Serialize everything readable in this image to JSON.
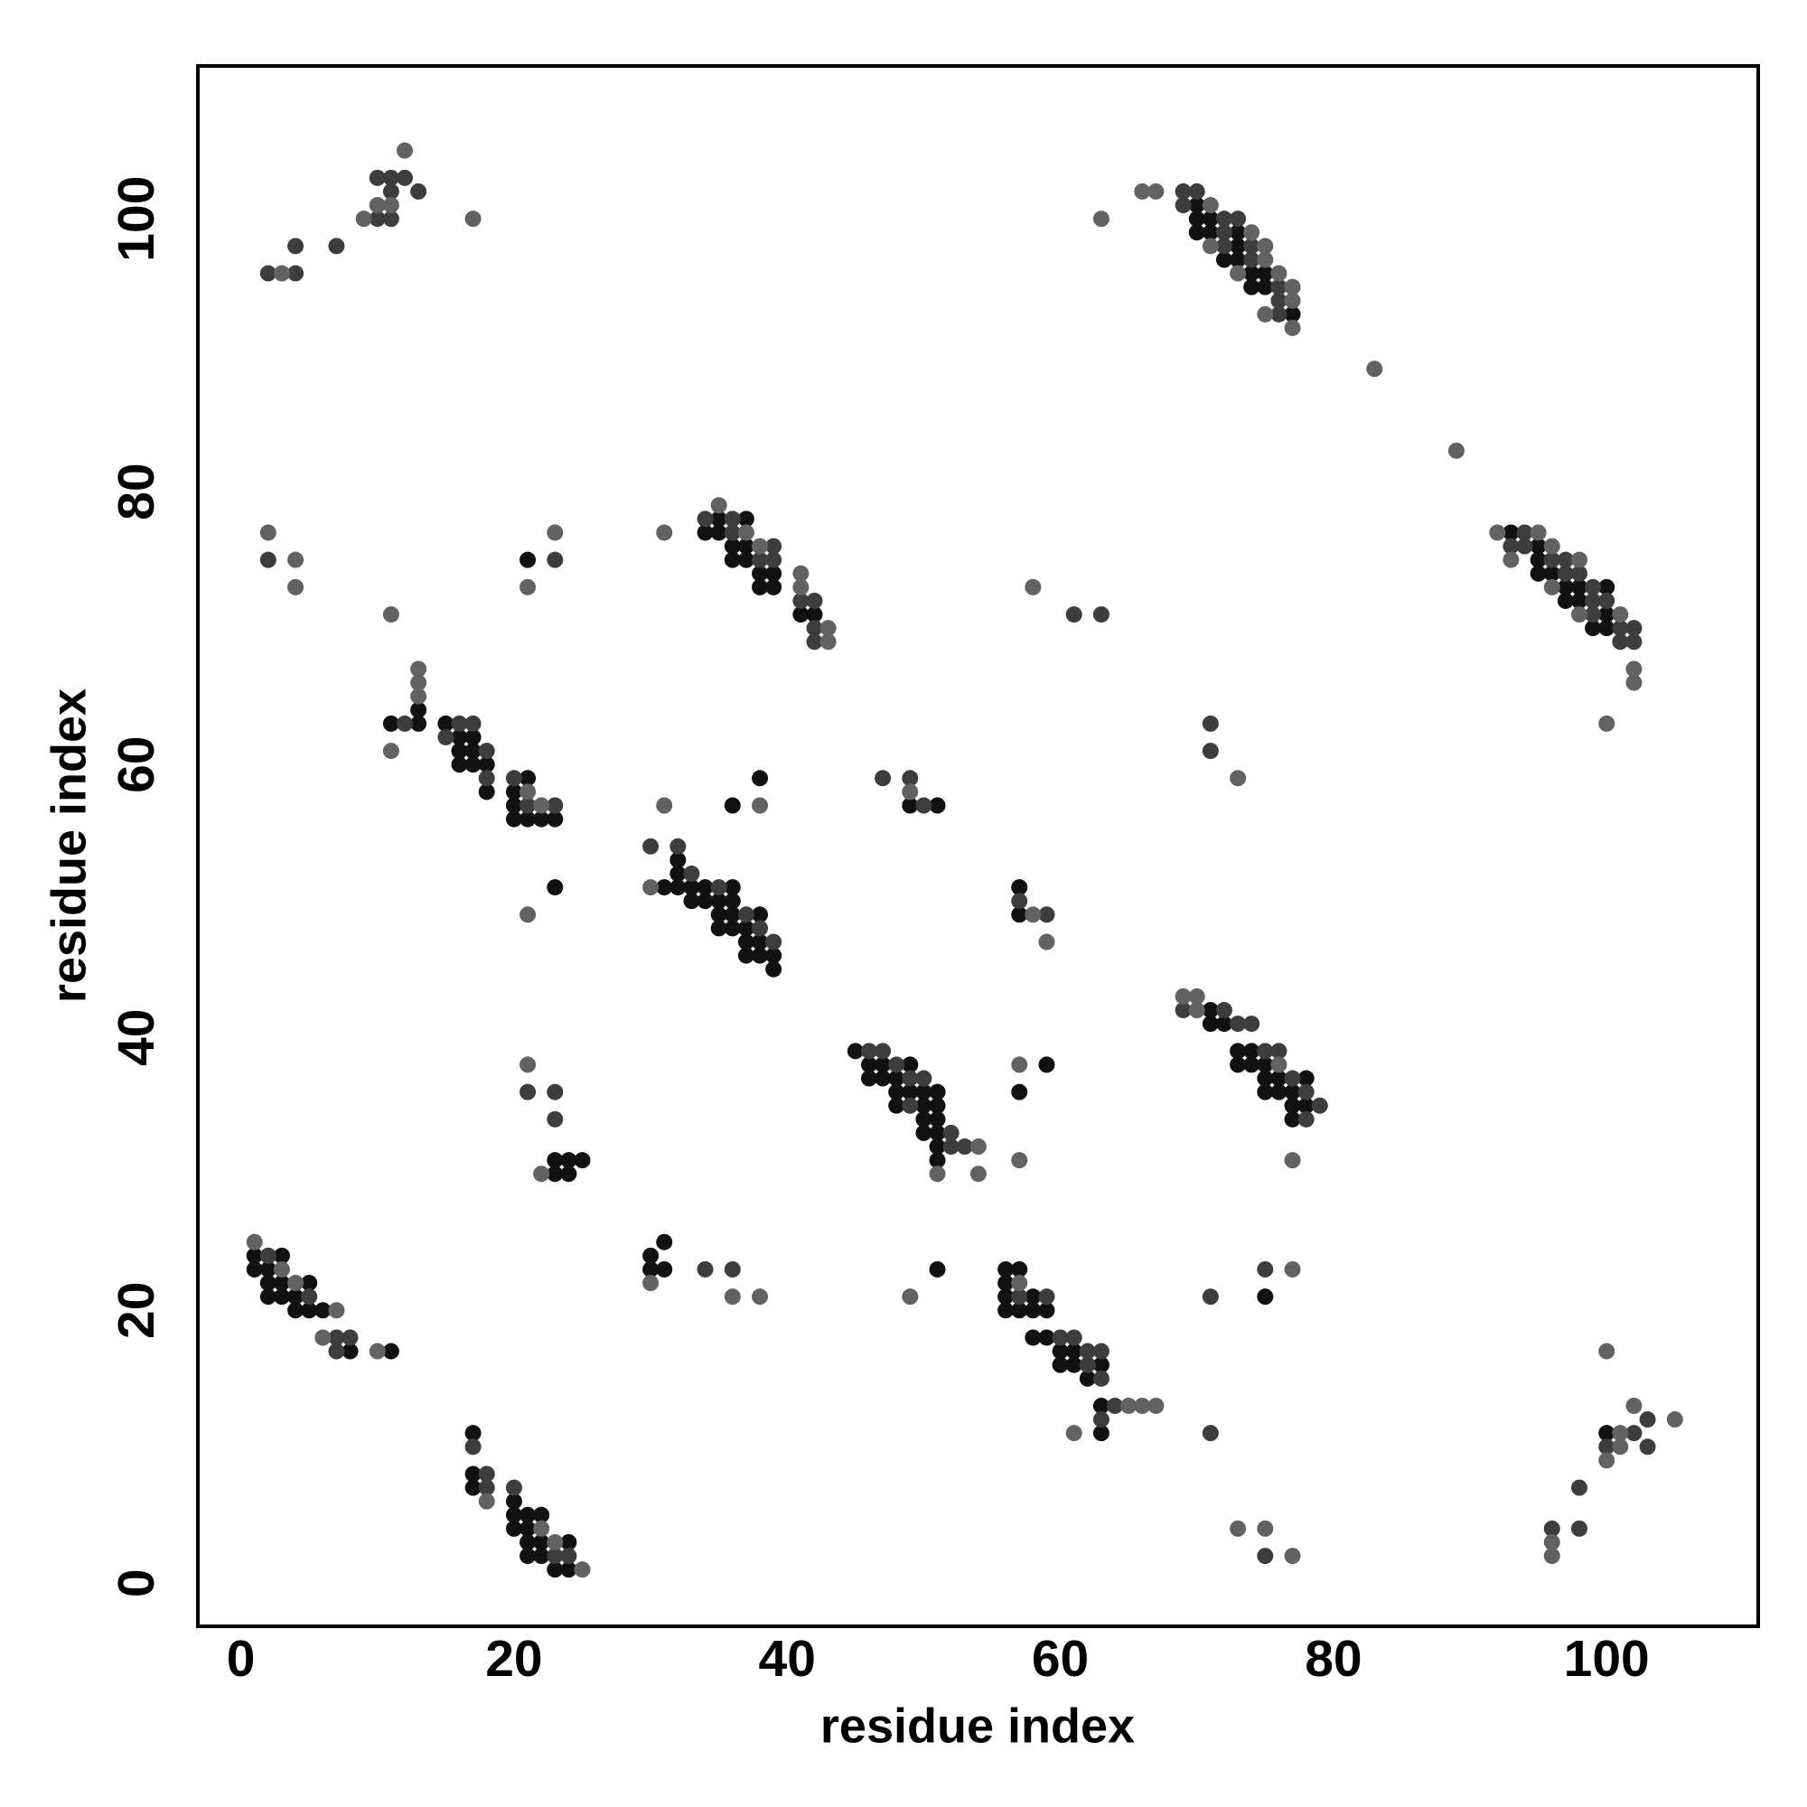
{
  "chart_data": {
    "type": "scatter",
    "x_label": "residue index",
    "y_label": "residue index",
    "xlim": [
      -3.15,
      111.1
    ],
    "ylim": [
      -3.16,
      111.2
    ],
    "xticks": [
      0,
      20,
      40,
      60,
      80,
      100
    ],
    "yticks": [
      0,
      20,
      40,
      60,
      80,
      100
    ],
    "grid": false,
    "series": [
      {
        "color": "#111111",
        "x": [
          70,
          70,
          71,
          70,
          71,
          73,
          73,
          72,
          73,
          74,
          75,
          74,
          75,
          77,
          93,
          95,
          95,
          95,
          96,
          97,
          98,
          100,
          97,
          98,
          100,
          99,
          100,
          21,
          35,
          37,
          34,
          35,
          36,
          37,
          36,
          37,
          38,
          39,
          38,
          39,
          41,
          42,
          13,
          11,
          13,
          15,
          16,
          17,
          16,
          17,
          16,
          17,
          18,
          18,
          21,
          20,
          20,
          20,
          21,
          22,
          23,
          23,
          36,
          38,
          49,
          51,
          31,
          32,
          32,
          32,
          33,
          34,
          36,
          33,
          34,
          35,
          36,
          35,
          36,
          38,
          35,
          36,
          37,
          37,
          38,
          37,
          38,
          39,
          39,
          57,
          57,
          71,
          71,
          72,
          73,
          74,
          73,
          74,
          75,
          75,
          76,
          78,
          75,
          76,
          77,
          77,
          78,
          77,
          45,
          46,
          47,
          49,
          46,
          47,
          48,
          48,
          49,
          50,
          51,
          48,
          50,
          51,
          50,
          51,
          50,
          51,
          51,
          51,
          57,
          59,
          23,
          24,
          25,
          23,
          24,
          1,
          3,
          1,
          2,
          2,
          3,
          5,
          2,
          3,
          4,
          4,
          5,
          6,
          8,
          11,
          30,
          31,
          30,
          31,
          51,
          56,
          57,
          56,
          56,
          58,
          56,
          57,
          58,
          59,
          58,
          59,
          60,
          61,
          60,
          61,
          63,
          62,
          63,
          63,
          75,
          17,
          17,
          17,
          20,
          20,
          21,
          22,
          20,
          21,
          21,
          22,
          24,
          21,
          22,
          23,
          24,
          100
        ],
        "values": [
          101,
          100,
          100,
          99,
          99,
          99,
          98,
          97,
          97,
          96,
          96,
          95,
          95,
          93,
          77,
          76,
          75,
          74,
          74,
          73,
          73,
          73,
          72,
          72,
          71,
          70,
          70,
          75,
          78,
          78,
          77,
          77,
          76,
          76,
          75,
          75,
          74,
          74,
          73,
          73,
          71,
          71,
          64,
          63,
          63,
          63,
          62,
          62,
          61,
          61,
          60,
          60,
          60,
          58,
          59,
          58,
          57,
          56,
          56,
          56,
          56,
          51,
          57,
          59,
          57,
          57,
          51,
          53,
          52,
          51,
          51,
          51,
          51,
          50,
          50,
          50,
          50,
          49,
          49,
          49,
          48,
          48,
          48,
          47,
          47,
          46,
          46,
          46,
          45,
          51,
          49,
          42,
          41,
          41,
          39,
          39,
          38,
          38,
          38,
          37,
          37,
          37,
          36,
          36,
          36,
          35,
          35,
          34,
          39,
          38,
          38,
          38,
          37,
          37,
          37,
          36,
          36,
          36,
          36,
          35,
          35,
          35,
          34,
          34,
          33,
          33,
          32,
          31,
          36,
          38,
          31,
          31,
          31,
          30,
          30,
          24,
          24,
          23,
          23,
          22,
          22,
          22,
          21,
          21,
          21,
          20,
          20,
          20,
          17,
          17,
          24,
          25,
          23,
          23,
          23,
          23,
          23,
          22,
          21,
          21,
          20,
          20,
          20,
          20,
          18,
          18,
          17,
          17,
          16,
          16,
          16,
          15,
          13,
          11,
          21,
          11,
          8,
          7,
          6,
          5,
          5,
          5,
          4,
          4,
          3,
          3,
          3,
          2,
          2,
          1,
          1,
          11
        ]
      },
      {
        "color": "#3d3d3d",
        "x": [
          2,
          4,
          4,
          7,
          10,
          11,
          10,
          11,
          12,
          11,
          13,
          69,
          70,
          69,
          72,
          73,
          72,
          72,
          74,
          74,
          76,
          76,
          76,
          94,
          93,
          94,
          96,
          97,
          97,
          98,
          99,
          99,
          100,
          99,
          101,
          102,
          101,
          102,
          2,
          23,
          61,
          63,
          71,
          71,
          34,
          36,
          36,
          39,
          38,
          39,
          41,
          42,
          42,
          42,
          12,
          16,
          17,
          15,
          18,
          18,
          20,
          21,
          23,
          47,
          49,
          50,
          30,
          32,
          33,
          35,
          37,
          38,
          39,
          57,
          59,
          69,
          72,
          73,
          74,
          75,
          76,
          77,
          78,
          79,
          78,
          46,
          47,
          48,
          49,
          50,
          49,
          52,
          52,
          53,
          21,
          23,
          23,
          2,
          5,
          7,
          8,
          7,
          34,
          36,
          57,
          59,
          60,
          61,
          62,
          63,
          62,
          63,
          64,
          63,
          71,
          71,
          75,
          17,
          18,
          18,
          20,
          23,
          24,
          75,
          102,
          103,
          100,
          103,
          98,
          96,
          98
        ],
        "values": [
          96,
          96,
          98,
          98,
          100,
          100,
          103,
          103,
          103,
          102,
          102,
          102,
          102,
          101,
          100,
          100,
          99,
          98,
          98,
          97,
          95,
          94,
          93,
          77,
          76,
          76,
          75,
          75,
          74,
          74,
          73,
          72,
          72,
          71,
          70,
          70,
          69,
          69,
          75,
          75,
          71,
          71,
          63,
          61,
          78,
          78,
          77,
          76,
          75,
          75,
          72,
          72,
          70,
          69,
          63,
          63,
          63,
          62,
          61,
          59,
          59,
          57,
          57,
          59,
          59,
          57,
          54,
          54,
          52,
          51,
          49,
          48,
          47,
          50,
          49,
          42,
          42,
          41,
          41,
          39,
          39,
          37,
          36,
          35,
          34,
          39,
          39,
          38,
          37,
          37,
          35,
          33,
          32,
          32,
          36,
          36,
          34,
          24,
          21,
          18,
          18,
          17,
          23,
          23,
          21,
          21,
          18,
          18,
          17,
          17,
          16,
          15,
          13,
          12,
          11,
          21,
          23,
          10,
          8,
          7,
          7,
          2,
          2,
          2,
          11,
          12,
          10,
          10,
          7,
          4,
          4
        ]
      },
      {
        "color": "#626262",
        "x": [
          3,
          9,
          10,
          11,
          12,
          17,
          63,
          66,
          67,
          71,
          74,
          71,
          75,
          75,
          73,
          76,
          77,
          77,
          75,
          77,
          83,
          89,
          92,
          95,
          96,
          93,
          98,
          96,
          98,
          101,
          102,
          102,
          100,
          2,
          4,
          4,
          11,
          21,
          23,
          31,
          35,
          37,
          38,
          41,
          41,
          43,
          43,
          58,
          13,
          13,
          13,
          11,
          21,
          22,
          21,
          31,
          38,
          49,
          30,
          58,
          59,
          69,
          70,
          70,
          76,
          77,
          54,
          51,
          54,
          57,
          57,
          21,
          22,
          1,
          3,
          4,
          7,
          6,
          10,
          30,
          36,
          38,
          49,
          57,
          65,
          66,
          67,
          61,
          77,
          18,
          22,
          23,
          25,
          73,
          75,
          77,
          100,
          102,
          101,
          105,
          101,
          100,
          96,
          96,
          73
        ],
        "values": [
          96,
          100,
          101,
          101,
          105,
          100,
          100,
          102,
          102,
          101,
          99,
          98,
          98,
          97,
          96,
          96,
          95,
          94,
          93,
          92,
          89,
          83,
          77,
          77,
          76,
          75,
          75,
          73,
          71,
          71,
          67,
          66,
          63,
          77,
          75,
          73,
          71,
          73,
          77,
          77,
          79,
          77,
          76,
          74,
          73,
          70,
          69,
          73,
          67,
          66,
          65,
          61,
          58,
          57,
          49,
          57,
          57,
          58,
          51,
          49,
          47,
          43,
          43,
          42,
          38,
          31,
          32,
          30,
          30,
          38,
          31,
          38,
          30,
          25,
          23,
          22,
          20,
          18,
          17,
          22,
          21,
          21,
          21,
          22,
          13,
          13,
          13,
          11,
          23,
          6,
          4,
          3,
          1,
          4,
          4,
          2,
          17,
          13,
          11,
          12,
          10,
          9,
          3,
          2,
          59
        ]
      }
    ]
  }
}
